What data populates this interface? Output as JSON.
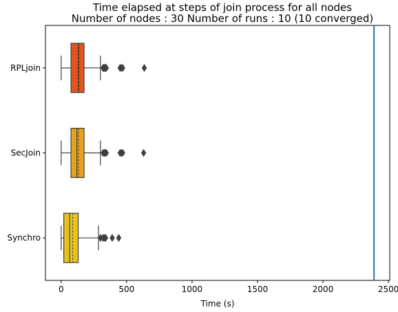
{
  "chart_data": {
    "type": "box",
    "title_line1": "Time elapsed at steps of join process for all nodes",
    "title_line2": "Number of nodes : 30   Number of runs : 10 (10 converged)",
    "xlabel": "Time (s)",
    "ylabel": "",
    "xlim": [
      -120,
      2510
    ],
    "x_ticks": [
      0,
      500,
      1000,
      1500,
      2000,
      2500
    ],
    "x_tick_labels": [
      "0",
      "500",
      "1000",
      "1500",
      "2000",
      "2500"
    ],
    "grid": false,
    "vertical_line": {
      "x": 2390,
      "color": "#1f77b4"
    },
    "categories": [
      "RPLjoin",
      "SecJoin",
      "Synchro"
    ],
    "series": [
      {
        "name": "RPLjoin",
        "color": "#e6531e",
        "whisker_low": 0,
        "q1": 75,
        "median": 130,
        "mean": 138,
        "q3": 175,
        "whisker_high": 300,
        "outliers": [
          320,
          325,
          330,
          335,
          340,
          345,
          450,
          460,
          470,
          635
        ]
      },
      {
        "name": "SecJoin",
        "color": "#e6a11e",
        "whisker_low": 0,
        "q1": 75,
        "median": 120,
        "mean": 132,
        "q3": 175,
        "whisker_high": 300,
        "outliers": [
          320,
          330,
          335,
          345,
          450,
          460,
          470,
          630
        ]
      },
      {
        "name": "Synchro",
        "color": "#e6c41e",
        "whisker_low": 0,
        "q1": 20,
        "median": 65,
        "mean": 88,
        "q3": 130,
        "whisker_high": 285,
        "outliers": [
          300,
          320,
          330,
          340,
          390,
          440
        ]
      }
    ]
  }
}
